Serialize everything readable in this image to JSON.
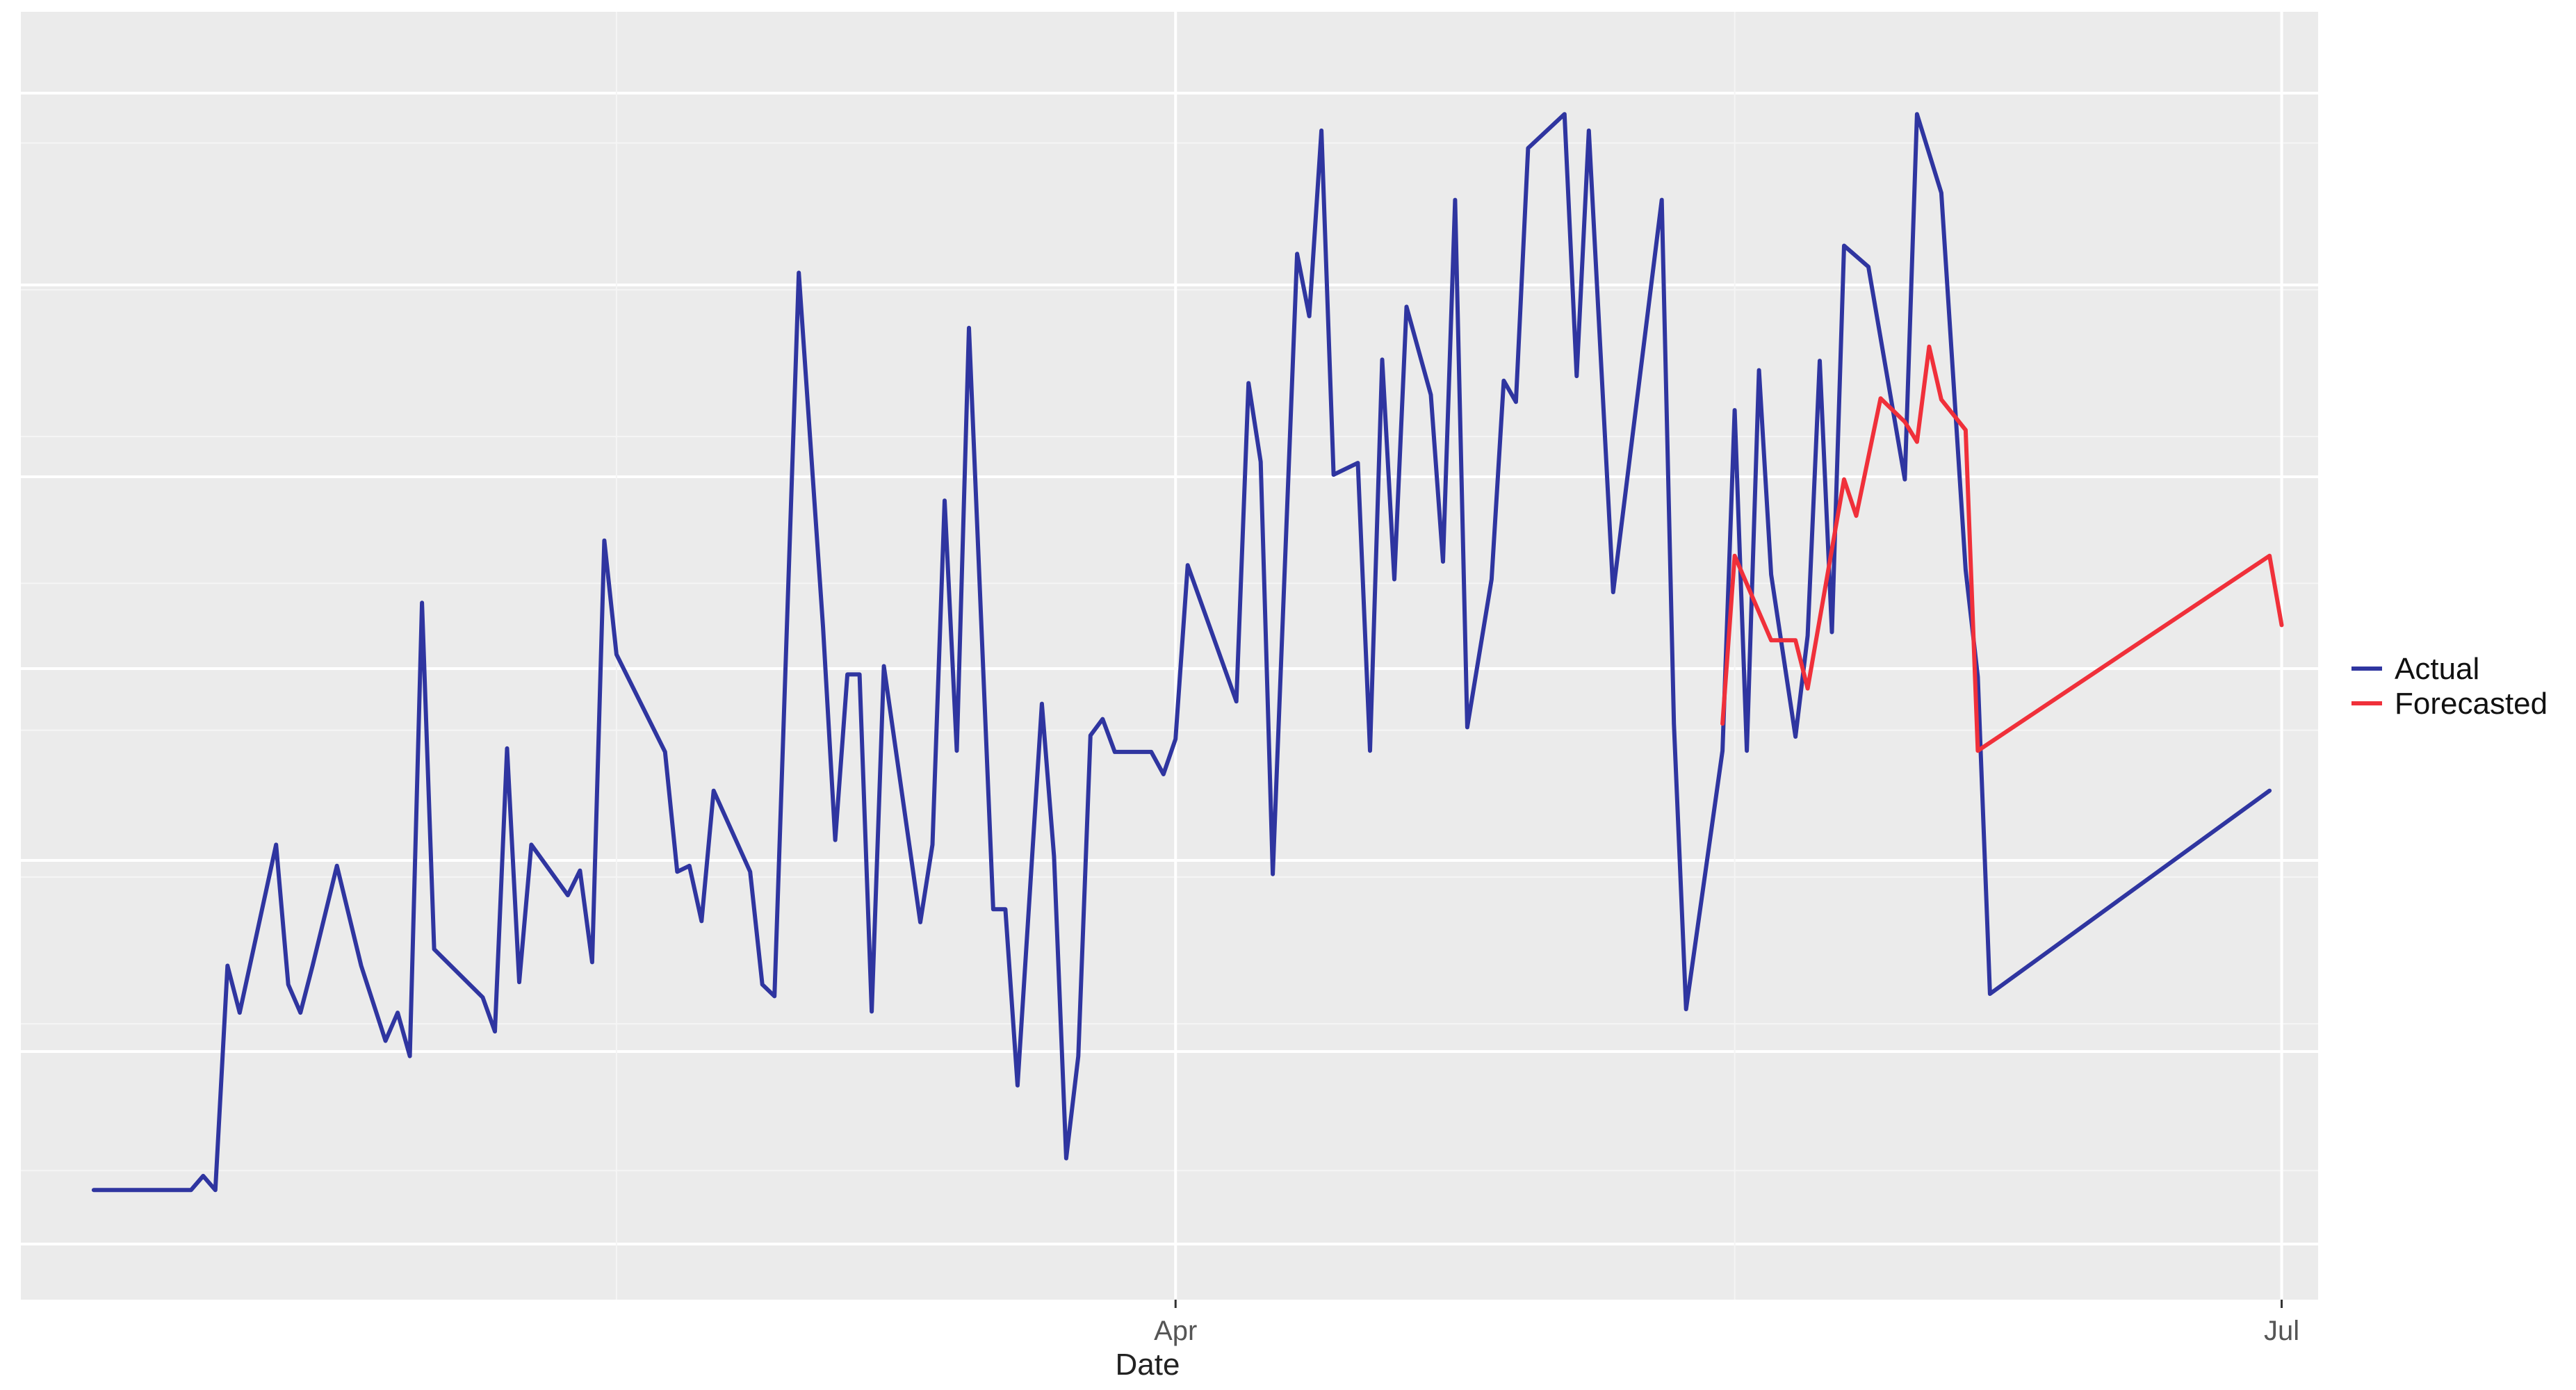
{
  "chart_data": {
    "type": "line",
    "title": "",
    "xlabel": "Date",
    "ylabel": "",
    "x_ticks": [
      "Apr",
      "Jul"
    ],
    "x_range": [
      "2023-01-01",
      "2023-07-01"
    ],
    "y_range": [
      0,
      1
    ],
    "grid": true,
    "legend": {
      "placement": "right",
      "entries": [
        "Actual",
        "Forecasted"
      ]
    },
    "series": [
      {
        "name": "Actual",
        "color": "#2f35a0",
        "points": [
          [
            "2023-01-02",
            0.046
          ],
          [
            "2023-01-10",
            0.046
          ],
          [
            "2023-01-11",
            0.058
          ],
          [
            "2023-01-12",
            0.046
          ],
          [
            "2023-01-13",
            0.237
          ],
          [
            "2023-01-14",
            0.197
          ],
          [
            "2023-01-17",
            0.34
          ],
          [
            "2023-01-18",
            0.221
          ],
          [
            "2023-01-19",
            0.197
          ],
          [
            "2023-01-20",
            0.237
          ],
          [
            "2023-01-22",
            0.322
          ],
          [
            "2023-01-24",
            0.237
          ],
          [
            "2023-01-26",
            0.173
          ],
          [
            "2023-01-27",
            0.197
          ],
          [
            "2023-01-28",
            0.16
          ],
          [
            "2023-01-29",
            0.546
          ],
          [
            "2023-01-30",
            0.251
          ],
          [
            "2023-02-03",
            0.21
          ],
          [
            "2023-02-04",
            0.181
          ],
          [
            "2023-02-05",
            0.422
          ],
          [
            "2023-02-06",
            0.223
          ],
          [
            "2023-02-07",
            0.34
          ],
          [
            "2023-02-10",
            0.297
          ],
          [
            "2023-02-11",
            0.318
          ],
          [
            "2023-02-12",
            0.24
          ],
          [
            "2023-02-13",
            0.599
          ],
          [
            "2023-02-14",
            0.502
          ],
          [
            "2023-02-18",
            0.419
          ],
          [
            "2023-02-19",
            0.317
          ],
          [
            "2023-02-20",
            0.322
          ],
          [
            "2023-02-21",
            0.275
          ],
          [
            "2023-02-22",
            0.386
          ],
          [
            "2023-02-25",
            0.317
          ],
          [
            "2023-02-26",
            0.221
          ],
          [
            "2023-02-27",
            0.211
          ],
          [
            "2023-03-01",
            0.827
          ],
          [
            "2023-03-03",
            0.525
          ],
          [
            "2023-03-04",
            0.344
          ],
          [
            "2023-03-05",
            0.485
          ],
          [
            "2023-03-06",
            0.485
          ],
          [
            "2023-03-07",
            0.198
          ],
          [
            "2023-03-08",
            0.492
          ],
          [
            "2023-03-11",
            0.274
          ],
          [
            "2023-03-12",
            0.34
          ],
          [
            "2023-03-13",
            0.633
          ],
          [
            "2023-03-14",
            0.42
          ],
          [
            "2023-03-15",
            0.78
          ],
          [
            "2023-03-17",
            0.285
          ],
          [
            "2023-03-18",
            0.285
          ],
          [
            "2023-03-19",
            0.135
          ],
          [
            "2023-03-21",
            0.46
          ],
          [
            "2023-03-22",
            0.33
          ],
          [
            "2023-03-23",
            0.073
          ],
          [
            "2023-03-24",
            0.16
          ],
          [
            "2023-03-25",
            0.433
          ],
          [
            "2023-03-26",
            0.447
          ],
          [
            "2023-03-27",
            0.419
          ],
          [
            "2023-03-30",
            0.419
          ],
          [
            "2023-03-31",
            0.4
          ],
          [
            "2023-04-01",
            0.43
          ],
          [
            "2023-04-02",
            0.578
          ],
          [
            "2023-04-06",
            0.462
          ],
          [
            "2023-04-07",
            0.733
          ],
          [
            "2023-04-08",
            0.666
          ],
          [
            "2023-04-09",
            0.315
          ],
          [
            "2023-04-11",
            0.843
          ],
          [
            "2023-04-12",
            0.79
          ],
          [
            "2023-04-13",
            0.948
          ],
          [
            "2023-04-14",
            0.655
          ],
          [
            "2023-04-16",
            0.665
          ],
          [
            "2023-04-17",
            0.42
          ],
          [
            "2023-04-18",
            0.753
          ],
          [
            "2023-04-19",
            0.566
          ],
          [
            "2023-04-20",
            0.798
          ],
          [
            "2023-04-22",
            0.723
          ],
          [
            "2023-04-23",
            0.581
          ],
          [
            "2023-04-24",
            0.889
          ],
          [
            "2023-04-25",
            0.44
          ],
          [
            "2023-04-27",
            0.566
          ],
          [
            "2023-04-28",
            0.735
          ],
          [
            "2023-04-29",
            0.717
          ],
          [
            "2023-04-30",
            0.933
          ],
          [
            "2023-05-03",
            0.962
          ],
          [
            "2023-05-04",
            0.739
          ],
          [
            "2023-05-05",
            0.948
          ],
          [
            "2023-05-07",
            0.555
          ],
          [
            "2023-05-11",
            0.889
          ],
          [
            "2023-05-12",
            0.443
          ],
          [
            "2023-05-13",
            0.2
          ],
          [
            "2023-05-16",
            0.42
          ],
          [
            "2023-05-17",
            0.71
          ],
          [
            "2023-05-18",
            0.42
          ],
          [
            "2023-05-19",
            0.744
          ],
          [
            "2023-05-20",
            0.57
          ],
          [
            "2023-05-22",
            0.432
          ],
          [
            "2023-05-23",
            0.518
          ],
          [
            "2023-05-24",
            0.752
          ],
          [
            "2023-05-25",
            0.521
          ],
          [
            "2023-05-26",
            0.85
          ],
          [
            "2023-05-28",
            0.832
          ],
          [
            "2023-05-31",
            0.651
          ],
          [
            "2023-06-01",
            0.962
          ],
          [
            "2023-06-03",
            0.895
          ],
          [
            "2023-06-05",
            0.574
          ],
          [
            "2023-06-06",
            0.483
          ],
          [
            "2023-06-07",
            0.213
          ],
          [
            "2023-06-30",
            0.386
          ]
        ]
      },
      {
        "name": "Forecasted",
        "color": "#f0303a",
        "points": [
          [
            "2023-05-16",
            0.443
          ],
          [
            "2023-05-17",
            0.586
          ],
          [
            "2023-05-20",
            0.514
          ],
          [
            "2023-05-22",
            0.514
          ],
          [
            "2023-05-23",
            0.473
          ],
          [
            "2023-05-26",
            0.651
          ],
          [
            "2023-05-27",
            0.62
          ],
          [
            "2023-05-29",
            0.72
          ],
          [
            "2023-05-31",
            0.7
          ],
          [
            "2023-06-01",
            0.683
          ],
          [
            "2023-06-02",
            0.764
          ],
          [
            "2023-06-03",
            0.719
          ],
          [
            "2023-06-05",
            0.693
          ],
          [
            "2023-06-06",
            0.42
          ],
          [
            "2023-06-30",
            0.586
          ],
          [
            "2023-07-01",
            0.527
          ]
        ]
      }
    ]
  }
}
